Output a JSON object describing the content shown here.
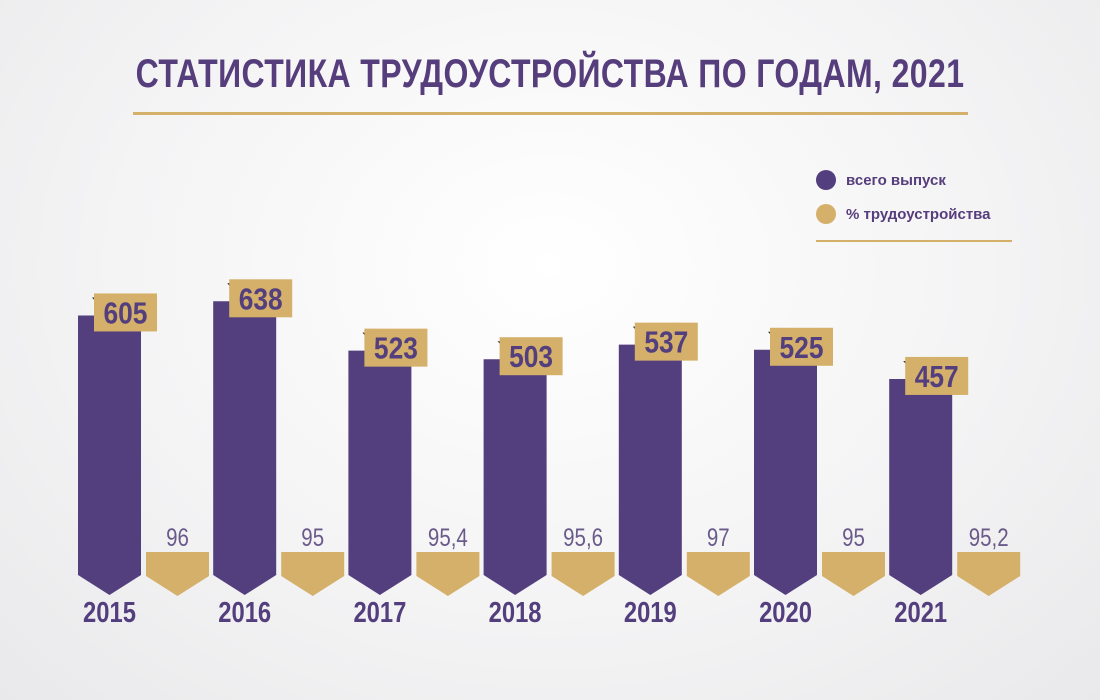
{
  "title": "СТАТИСТИКА ТРУДОУСТРОЙСТВА ПО ГОДАМ, 2021",
  "colors": {
    "purple": "#533e7e",
    "gold": "#d4b06a",
    "dark": "#2a2a2a",
    "text_light": "#6a5a8a"
  },
  "legend": [
    {
      "label": "всего выпуск",
      "color": "#533e7e"
    },
    {
      "label": "% трудоустройства",
      "color": "#d4b06a"
    }
  ],
  "chart_data": {
    "type": "bar",
    "categories": [
      "2015",
      "2016",
      "2017",
      "2018",
      "2019",
      "2020",
      "2021"
    ],
    "series": [
      {
        "name": "всего выпуск",
        "values": [
          605,
          638,
          523,
          503,
          537,
          525,
          457
        ],
        "labels": [
          "605",
          "638",
          "523",
          "503",
          "537",
          "525",
          "457"
        ]
      },
      {
        "name": "% трудоустройства",
        "values": [
          96,
          95,
          95.4,
          95.6,
          97,
          95,
          95.2
        ],
        "labels": [
          "96",
          "95",
          "95,4",
          "95,6",
          "97",
          "95",
          "95,2"
        ]
      }
    ],
    "title": "СТАТИСТИКА ТРУДОУСТРОЙСТВА ПО ГОДАМ, 2021",
    "xlabel": "",
    "ylabel": "",
    "legend_position": "top-right",
    "grid": false
  }
}
